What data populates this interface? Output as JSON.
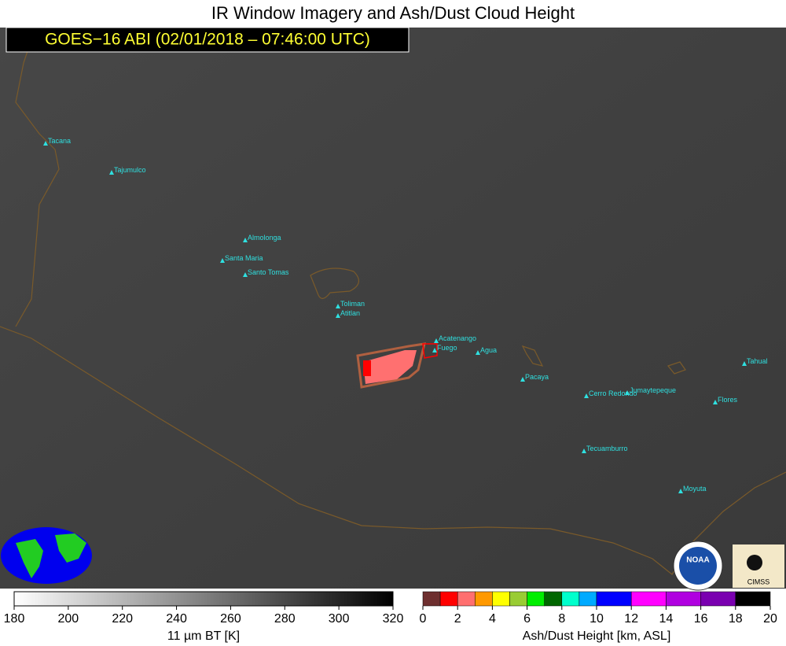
{
  "header": {
    "title": "IR Window Imagery and Ash/Dust Cloud Height",
    "subtitle": "GOES−16 ABI (02/01/2018 – 07:46:00 UTC)"
  },
  "volcanoes": [
    "Tacana",
    "Tajumulco",
    "Almolonga",
    "Santa Maria",
    "Santo Tomas",
    "Toliman",
    "Atitlan",
    "Acatenango",
    "Fuego",
    "Agua",
    "Pacaya",
    "Cerro Redondo",
    "Jumaytepeque",
    "Tahual",
    "Flores",
    "Tecuamburro",
    "Moyuta"
  ],
  "logos": {
    "noaa": "NOAA",
    "cimss": "CIMSS"
  },
  "colorbars": [
    {
      "label": "11 µm BT [K]",
      "range": [
        180,
        320
      ],
      "ticks": [
        180,
        200,
        220,
        240,
        260,
        280,
        300,
        320
      ],
      "colors": [
        "#ffffff",
        "#000000"
      ]
    },
    {
      "label": "Ash/Dust Height [km, ASL]",
      "range": [
        0,
        20
      ],
      "ticks": [
        0,
        2,
        4,
        6,
        8,
        10,
        12,
        14,
        16,
        18,
        20
      ],
      "segments": [
        {
          "from": 0,
          "to": 1,
          "color": "#6e2f2f"
        },
        {
          "from": 1,
          "to": 2,
          "color": "#ff0000"
        },
        {
          "from": 2,
          "to": 3,
          "color": "#ff6f6f"
        },
        {
          "from": 3,
          "to": 4,
          "color": "#ff9900"
        },
        {
          "from": 4,
          "to": 5,
          "color": "#ffff00"
        },
        {
          "from": 5,
          "to": 6,
          "color": "#99cc33"
        },
        {
          "from": 6,
          "to": 7,
          "color": "#00ee00"
        },
        {
          "from": 7,
          "to": 8,
          "color": "#006600"
        },
        {
          "from": 8,
          "to": 9,
          "color": "#00ffcc"
        },
        {
          "from": 9,
          "to": 10,
          "color": "#00aaff"
        },
        {
          "from": 10,
          "to": 12,
          "color": "#0000ff"
        },
        {
          "from": 12,
          "to": 14,
          "color": "#ff00ff"
        },
        {
          "from": 14,
          "to": 16,
          "color": "#b000e0"
        },
        {
          "from": 16,
          "to": 18,
          "color": "#7a00b0"
        },
        {
          "from": 18,
          "to": 20,
          "color": "#000000"
        }
      ]
    }
  ]
}
